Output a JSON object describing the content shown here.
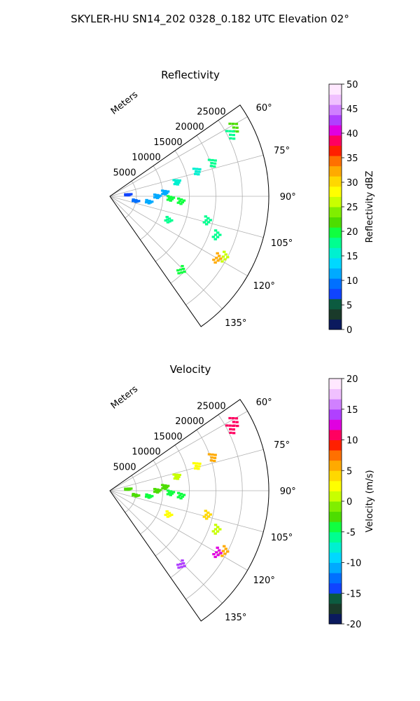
{
  "figure_title": "SKYLER-HU  SN14_202  0328_0.182 UTC Elevation 02°",
  "chart_data": [
    {
      "type": "polar-sector",
      "title": "Reflectivity",
      "radial_label": "Meters",
      "range_ticks": [
        "5000",
        "10000",
        "15000",
        "20000",
        "25000"
      ],
      "azimuth_ticks": [
        "60°",
        "75°",
        "90°",
        "105°",
        "120°",
        "135°"
      ],
      "azimuth_range_deg": [
        55,
        145
      ],
      "range_max_m": 30000,
      "colorbar": {
        "label": "Reflectivity dBZ",
        "ticks": [
          "0",
          "5",
          "10",
          "15",
          "20",
          "25",
          "30",
          "35",
          "40",
          "45",
          "50"
        ],
        "range": [
          0,
          50
        ],
        "colors": [
          "#0b1a5e",
          "#1a3a2a",
          "#0c5b40",
          "#1044ff",
          "#0070ff",
          "#00aaff",
          "#00d8ff",
          "#00f0d0",
          "#00ff90",
          "#10ff40",
          "#4ddd00",
          "#80ee00",
          "#c8ff00",
          "#ffff00",
          "#ffd800",
          "#ffaa00",
          "#ff7000",
          "#ff2000",
          "#ff0060",
          "#e000e0",
          "#b040ff",
          "#d080ff",
          "#f0c0ff",
          "#ffe8ff"
        ]
      },
      "echoes": [
        {
          "az": 61,
          "r": 27000,
          "val": 22
        },
        {
          "az": 63,
          "r": 25800,
          "val": 18
        },
        {
          "az": 72,
          "r": 20500,
          "val": 17
        },
        {
          "az": 74,
          "r": 17200,
          "val": 16
        },
        {
          "az": 78,
          "r": 13000,
          "val": 15
        },
        {
          "az": 86,
          "r": 10500,
          "val": 12
        },
        {
          "az": 90,
          "r": 9000,
          "val": 11
        },
        {
          "az": 92,
          "r": 11500,
          "val": 19
        },
        {
          "az": 94,
          "r": 13500,
          "val": 20
        },
        {
          "az": 98,
          "r": 7500,
          "val": 11
        },
        {
          "az": 100,
          "r": 5000,
          "val": 10
        },
        {
          "az": 104,
          "r": 19000,
          "val": 17
        },
        {
          "az": 110,
          "r": 21500,
          "val": 18
        },
        {
          "az": 112,
          "r": 12000,
          "val": 18
        },
        {
          "az": 118,
          "r": 24500,
          "val": 26
        },
        {
          "az": 120,
          "r": 23500,
          "val": 33
        },
        {
          "az": 136,
          "r": 19500,
          "val": 20
        },
        {
          "az": 85,
          "r": 3500,
          "val": 8
        }
      ]
    },
    {
      "type": "polar-sector",
      "title": "Velocity",
      "radial_label": "Meters",
      "range_ticks": [
        "5000",
        "10000",
        "15000",
        "20000",
        "25000"
      ],
      "azimuth_ticks": [
        "60°",
        "75°",
        "90°",
        "105°",
        "120°",
        "135°"
      ],
      "azimuth_range_deg": [
        55,
        145
      ],
      "range_max_m": 30000,
      "colorbar": {
        "label": "Velocity (m/s)",
        "ticks": [
          "-20",
          "-15",
          "-10",
          "-5",
          "0",
          "5",
          "10",
          "15",
          "20"
        ],
        "range": [
          -20,
          20
        ],
        "colors": [
          "#0b1a5e",
          "#1a3a2a",
          "#0c5b40",
          "#1044ff",
          "#0070ff",
          "#00aaff",
          "#00d8ff",
          "#00f0d0",
          "#00ff90",
          "#10ff40",
          "#4ddd00",
          "#80ee00",
          "#c8ff00",
          "#ffff00",
          "#ffd800",
          "#ffaa00",
          "#ff7000",
          "#ff2000",
          "#ff0060",
          "#e000e0",
          "#b040ff",
          "#d080ff",
          "#f0c0ff",
          "#ffe8ff"
        ]
      },
      "echoes": [
        {
          "az": 61,
          "r": 27000,
          "val": 11
        },
        {
          "az": 63,
          "r": 25800,
          "val": 10
        },
        {
          "az": 72,
          "r": 20500,
          "val": 5
        },
        {
          "az": 74,
          "r": 17200,
          "val": 2
        },
        {
          "az": 78,
          "r": 13000,
          "val": 1
        },
        {
          "az": 86,
          "r": 10500,
          "val": -3
        },
        {
          "az": 90,
          "r": 9000,
          "val": -3
        },
        {
          "az": 92,
          "r": 11500,
          "val": -5
        },
        {
          "az": 94,
          "r": 13500,
          "val": -5
        },
        {
          "az": 98,
          "r": 7500,
          "val": -4
        },
        {
          "az": 100,
          "r": 5000,
          "val": -2
        },
        {
          "az": 104,
          "r": 19000,
          "val": 4
        },
        {
          "az": 110,
          "r": 21500,
          "val": 1
        },
        {
          "az": 112,
          "r": 12000,
          "val": 3
        },
        {
          "az": 118,
          "r": 24500,
          "val": 6
        },
        {
          "az": 120,
          "r": 23500,
          "val": 12
        },
        {
          "az": 136,
          "r": 19500,
          "val": 14
        },
        {
          "az": 85,
          "r": 3500,
          "val": -2
        }
      ]
    }
  ]
}
